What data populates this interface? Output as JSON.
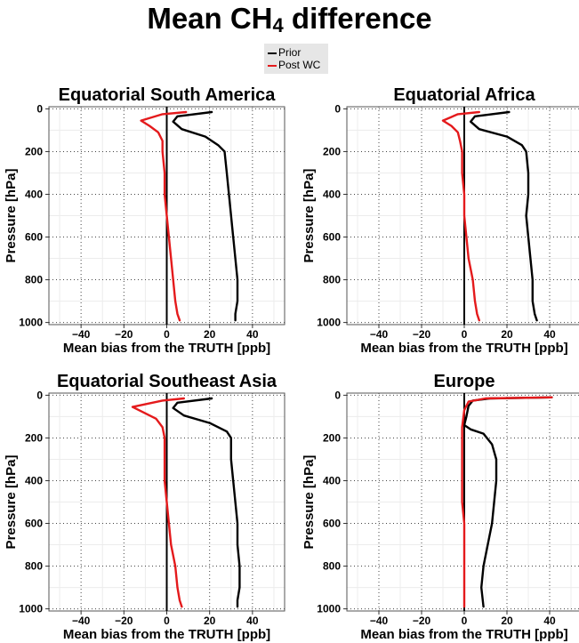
{
  "figure": {
    "title_prefix": "Mean CH",
    "title_subscript": "4",
    "title_suffix": " difference",
    "legend": [
      {
        "label": "Prior",
        "color": "#000000"
      },
      {
        "label": "Post WC",
        "color": "#e41a1c"
      }
    ]
  },
  "chart_data": [
    {
      "type": "line",
      "title": "Equatorial South America",
      "xlabel": "Mean bias from the TRUTH [ppb]",
      "ylabel": "Pressure [hPa]",
      "xlim": [
        -55,
        55
      ],
      "ylim": [
        1010,
        -10
      ],
      "xticks": [
        -40,
        -20,
        0,
        20,
        40
      ],
      "yticks": [
        0,
        200,
        400,
        600,
        800,
        1000
      ],
      "grid": true,
      "series": [
        {
          "name": "Prior",
          "color": "#000000",
          "x": [
            21,
            5,
            3,
            7,
            18,
            24,
            27,
            28,
            29,
            30,
            31,
            32,
            33,
            33,
            32,
            32
          ],
          "y": [
            15,
            35,
            60,
            95,
            130,
            170,
            200,
            300,
            400,
            500,
            600,
            700,
            800,
            900,
            960,
            990
          ]
        },
        {
          "name": "Post WC",
          "color": "#e41a1c",
          "x": [
            9,
            -2,
            -12,
            -8,
            -4,
            -2,
            -2,
            -1,
            -1,
            0,
            1,
            2,
            3,
            4,
            5,
            6
          ],
          "y": [
            15,
            25,
            55,
            80,
            110,
            150,
            200,
            300,
            400,
            500,
            600,
            700,
            800,
            900,
            960,
            990
          ]
        }
      ]
    },
    {
      "type": "line",
      "title": "Equatorial Africa",
      "xlabel": "Mean bias from the TRUTH [ppb]",
      "ylabel": "Pressure [hPa]",
      "xlim": [
        -55,
        55
      ],
      "ylim": [
        1010,
        -10
      ],
      "xticks": [
        -40,
        -20,
        0,
        20,
        40
      ],
      "yticks": [
        0,
        200,
        400,
        600,
        800,
        1000
      ],
      "grid": true,
      "series": [
        {
          "name": "Prior",
          "color": "#000000",
          "x": [
            21,
            5,
            3,
            7,
            20,
            27,
            29,
            30,
            30,
            29,
            30,
            31,
            32,
            32,
            33,
            34
          ],
          "y": [
            15,
            35,
            60,
            95,
            130,
            170,
            200,
            300,
            400,
            500,
            600,
            700,
            800,
            900,
            960,
            990
          ]
        },
        {
          "name": "Post WC",
          "color": "#e41a1c",
          "x": [
            7,
            -3,
            -10,
            -6,
            -3,
            -2,
            -1,
            -1,
            0,
            0,
            1,
            2,
            4,
            5,
            6,
            7
          ],
          "y": [
            15,
            25,
            55,
            80,
            110,
            150,
            200,
            300,
            400,
            500,
            600,
            700,
            800,
            900,
            960,
            990
          ]
        }
      ]
    },
    {
      "type": "line",
      "title": "Equatorial Southeast Asia",
      "xlabel": "Mean bias from the TRUTH [ppb]",
      "ylabel": "Pressure [hPa]",
      "xlim": [
        -55,
        55
      ],
      "ylim": [
        1010,
        -10
      ],
      "xticks": [
        -40,
        -20,
        0,
        20,
        40
      ],
      "yticks": [
        0,
        200,
        400,
        600,
        800,
        1000
      ],
      "grid": true,
      "series": [
        {
          "name": "Prior",
          "color": "#000000",
          "x": [
            21,
            5,
            3,
            8,
            20,
            28,
            30,
            30,
            31,
            32,
            33,
            33,
            34,
            34,
            33,
            33
          ],
          "y": [
            15,
            35,
            60,
            95,
            130,
            170,
            200,
            300,
            400,
            500,
            600,
            700,
            800,
            900,
            960,
            990
          ]
        },
        {
          "name": "Post WC",
          "color": "#e41a1c",
          "x": [
            8,
            -2,
            -16,
            -11,
            -5,
            -2,
            -1,
            -1,
            -1,
            0,
            1,
            2,
            4,
            5,
            6,
            7
          ],
          "y": [
            15,
            25,
            55,
            80,
            110,
            150,
            200,
            300,
            400,
            500,
            600,
            700,
            800,
            900,
            960,
            990
          ]
        }
      ]
    },
    {
      "type": "line",
      "title": "Europe",
      "xlabel": "Mean bias from the TRUTH [ppb]",
      "ylabel": "Pressure [hPa]",
      "xlim": [
        -55,
        55
      ],
      "ylim": [
        1010,
        -10
      ],
      "xticks": [
        -40,
        -20,
        0,
        20,
        40
      ],
      "yticks": [
        0,
        200,
        400,
        600,
        800,
        1000
      ],
      "grid": true,
      "series": [
        {
          "name": "Prior",
          "color": "#000000",
          "x": [
            41,
            12,
            4,
            2,
            1,
            0,
            3,
            9,
            13,
            15,
            15,
            14,
            13,
            11,
            9,
            8,
            9
          ],
          "y": [
            10,
            15,
            25,
            50,
            100,
            140,
            160,
            180,
            230,
            300,
            400,
            500,
            600,
            700,
            800,
            900,
            990
          ]
        },
        {
          "name": "Post WC",
          "color": "#e41a1c",
          "x": [
            41,
            10,
            2,
            0,
            -1,
            -1,
            -1,
            -1,
            -1,
            0,
            0,
            0,
            0
          ],
          "y": [
            10,
            15,
            30,
            70,
            150,
            220,
            300,
            400,
            500,
            600,
            700,
            800,
            990
          ]
        }
      ]
    }
  ]
}
